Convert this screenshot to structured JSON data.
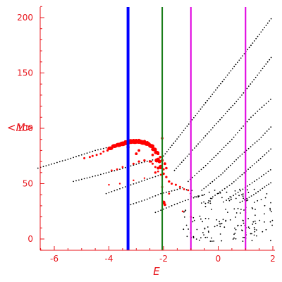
{
  "chart_data": {
    "type": "scatter",
    "title": "",
    "xlabel": "E",
    "ylabel": "<M>",
    "xlim": [
      -6.6,
      2.05
    ],
    "ylim": [
      -10,
      210
    ],
    "x_ticks": [
      -6,
      -4,
      -2,
      0,
      2
    ],
    "y_ticks": [
      0,
      50,
      100,
      150,
      200
    ],
    "axis_color": "#e8141b",
    "vertical_lines": [
      {
        "x": -3.3,
        "color": "#0000ff",
        "style": "thick"
      },
      {
        "x": -2.05,
        "color": "#1a7d1a",
        "style": "normal"
      },
      {
        "x": -1.0,
        "color": "#e000e0",
        "style": "normal"
      },
      {
        "x": 1.0,
        "color": "#e000e0",
        "style": "normal"
      }
    ],
    "series": [
      {
        "kind": "black-curves",
        "color": "#000000",
        "curves": [
          {
            "x": [
              -6.6,
              -5.5,
              -4.5,
              -4.0
            ],
            "y": [
              64,
              72,
              80,
              83
            ]
          },
          {
            "x": [
              -5.3,
              -4.5,
              -3.6,
              -2.8,
              -2.3
            ],
            "y": [
              52,
              57,
              63,
              69,
              72
            ]
          },
          {
            "x": [
              -4.1,
              -3.3,
              -2.6,
              -2.1
            ],
            "y": [
              41,
              48,
              54,
              58
            ]
          },
          {
            "x": [
              -3.2,
              -2.6,
              -2.1,
              -1.6,
              -1.2
            ],
            "y": [
              31,
              36,
              41,
              44,
              47
            ]
          },
          {
            "x": [
              -2.3,
              -1.8,
              -1.3,
              -0.8,
              -0.4
            ],
            "y": [
              24,
              29,
              34,
              38,
              41
            ]
          },
          {
            "x": [
              -2.0,
              -1.2,
              -0.4,
              0.4,
              1.2,
              2.0
            ],
            "y": [
              75,
              100,
              125,
              150,
              175,
              201
            ]
          },
          {
            "x": [
              -1.6,
              -0.8,
              0.0,
              0.8,
              1.5,
              2.0
            ],
            "y": [
              62,
              84,
              106,
              128,
              150,
              166
            ]
          },
          {
            "x": [
              -1.1,
              -0.3,
              0.5,
              1.2,
              2.0
            ],
            "y": [
              52,
              70,
              90,
              110,
              128
            ]
          },
          {
            "x": [
              -0.6,
              0.1,
              0.8,
              1.5,
              2.0
            ],
            "y": [
              44,
              58,
              75,
              90,
              103
            ]
          },
          {
            "x": [
              -0.2,
              0.5,
              1.1,
              1.7,
              2.0
            ],
            "y": [
              38,
              50,
              63,
              76,
              83
            ]
          },
          {
            "x": [
              0.3,
              0.9,
              1.5,
              2.0
            ],
            "y": [
              35,
              45,
              55,
              64
            ]
          },
          {
            "x": [
              0.8,
              1.3,
              1.7,
              2.0
            ],
            "y": [
              33,
              40,
              47,
              52
            ]
          }
        ],
        "scatter_region": {
          "x": [
            -1.3,
            2.0
          ],
          "y": [
            -2,
            45
          ],
          "count": 170
        }
      },
      {
        "kind": "red-points",
        "color": "#ff0000",
        "points": [
          {
            "x": -4.9,
            "y": 73,
            "s": 2
          },
          {
            "x": -4.7,
            "y": 74,
            "s": 2
          },
          {
            "x": -4.6,
            "y": 75,
            "s": 2
          },
          {
            "x": -4.45,
            "y": 76,
            "s": 2
          },
          {
            "x": -4.3,
            "y": 77,
            "s": 2
          },
          {
            "x": -4.2,
            "y": 79,
            "s": 2
          },
          {
            "x": -4.05,
            "y": 80,
            "s": 2.2
          },
          {
            "x": -3.9,
            "y": 82,
            "s": 2.2
          },
          {
            "x": -3.8,
            "y": 84,
            "s": 2.2
          },
          {
            "x": -3.7,
            "y": 85,
            "s": 2.4
          },
          {
            "x": -3.6,
            "y": 86,
            "s": 2.4
          },
          {
            "x": -3.5,
            "y": 87,
            "s": 2.4
          },
          {
            "x": -3.4,
            "y": 88,
            "s": 2.6
          },
          {
            "x": -3.3,
            "y": 89,
            "s": 2.6
          },
          {
            "x": -3.2,
            "y": 89,
            "s": 2.8
          },
          {
            "x": -3.1,
            "y": 89,
            "s": 3
          },
          {
            "x": -3.0,
            "y": 89,
            "s": 3
          },
          {
            "x": -2.9,
            "y": 89,
            "s": 3.2
          },
          {
            "x": -2.8,
            "y": 88,
            "s": 3.2
          },
          {
            "x": -2.7,
            "y": 88,
            "s": 3.2
          },
          {
            "x": -2.6,
            "y": 87,
            "s": 3.2
          },
          {
            "x": -2.5,
            "y": 85,
            "s": 3
          },
          {
            "x": -2.4,
            "y": 83,
            "s": 3
          },
          {
            "x": -2.3,
            "y": 80,
            "s": 2.8
          },
          {
            "x": -2.2,
            "y": 77,
            "s": 2.6
          },
          {
            "x": -2.12,
            "y": 74,
            "s": 2.4
          },
          {
            "x": -3.9,
            "y": 62,
            "s": 1.8
          },
          {
            "x": -3.7,
            "y": 63,
            "s": 1.8
          },
          {
            "x": -3.5,
            "y": 65,
            "s": 1.8
          },
          {
            "x": -3.3,
            "y": 67,
            "s": 2
          },
          {
            "x": -3.1,
            "y": 68,
            "s": 2
          },
          {
            "x": -2.9,
            "y": 70,
            "s": 2.2
          },
          {
            "x": -2.7,
            "y": 71,
            "s": 2.2
          },
          {
            "x": -2.5,
            "y": 70,
            "s": 2.2
          },
          {
            "x": -2.4,
            "y": 68,
            "s": 2
          },
          {
            "x": -2.3,
            "y": 65,
            "s": 2
          },
          {
            "x": -2.2,
            "y": 61,
            "s": 1.8
          },
          {
            "x": -2.1,
            "y": 58,
            "s": 1.8
          },
          {
            "x": -4.0,
            "y": 49,
            "s": 1.6
          },
          {
            "x": -3.6,
            "y": 50,
            "s": 1.6
          },
          {
            "x": -3.1,
            "y": 53,
            "s": 1.6
          },
          {
            "x": -2.7,
            "y": 55,
            "s": 1.6
          },
          {
            "x": -2.05,
            "y": 91,
            "s": 2.4
          },
          {
            "x": -3.3,
            "y": 83,
            "s": 3
          },
          {
            "x": -3.0,
            "y": 77,
            "s": 2.6
          },
          {
            "x": -2.9,
            "y": 80,
            "s": 2.6
          },
          {
            "x": -2.4,
            "y": 76,
            "s": 2.4
          },
          {
            "x": -2.2,
            "y": 72,
            "s": 3.2
          },
          {
            "x": -2.25,
            "y": 71,
            "s": 4
          },
          {
            "x": -2.15,
            "y": 70,
            "s": 3.4
          },
          {
            "x": -2.05,
            "y": 71,
            "s": 2.8
          },
          {
            "x": -1.95,
            "y": 68,
            "s": 2.6
          },
          {
            "x": -1.9,
            "y": 64,
            "s": 2.4
          },
          {
            "x": -2.2,
            "y": 64,
            "s": 2.6
          },
          {
            "x": -2.3,
            "y": 60,
            "s": 2.2
          },
          {
            "x": -2.0,
            "y": 63,
            "s": 2.2
          },
          {
            "x": -2.1,
            "y": 65,
            "s": 4.2
          },
          {
            "x": -2.0,
            "y": 59,
            "s": 2.4
          },
          {
            "x": -1.9,
            "y": 56,
            "s": 2.2
          },
          {
            "x": -1.8,
            "y": 52,
            "s": 2.2
          },
          {
            "x": -1.7,
            "y": 50,
            "s": 2
          },
          {
            "x": -1.55,
            "y": 49,
            "s": 2
          },
          {
            "x": -1.4,
            "y": 47,
            "s": 2
          },
          {
            "x": -1.25,
            "y": 45,
            "s": 1.8
          },
          {
            "x": -1.1,
            "y": 44,
            "s": 1.8
          },
          {
            "x": -2.0,
            "y": 33,
            "s": 3.6
          },
          {
            "x": -1.95,
            "y": 31,
            "s": 2.6
          },
          {
            "x": -2.05,
            "y": 47,
            "s": 2
          },
          {
            "x": -1.8,
            "y": 41,
            "s": 1.8
          },
          {
            "x": -1.3,
            "y": 25,
            "s": 1.8
          },
          {
            "x": -1.0,
            "y": 20,
            "s": 1.8
          },
          {
            "x": -2.45,
            "y": 70,
            "s": 2
          }
        ],
        "blobs": [
          {
            "x": -3.95,
            "y": 82,
            "s": 3
          },
          {
            "x": -3.8,
            "y": 84,
            "s": 3.2
          },
          {
            "x": -3.65,
            "y": 85,
            "s": 3.4
          },
          {
            "x": -3.5,
            "y": 86,
            "s": 3.6
          },
          {
            "x": -3.35,
            "y": 87,
            "s": 3.8
          },
          {
            "x": -3.2,
            "y": 88,
            "s": 3.8
          },
          {
            "x": -3.05,
            "y": 88,
            "s": 3.8
          },
          {
            "x": -2.9,
            "y": 88,
            "s": 3.6
          },
          {
            "x": -2.75,
            "y": 87,
            "s": 3.4
          },
          {
            "x": -2.6,
            "y": 86,
            "s": 3.4
          },
          {
            "x": -2.45,
            "y": 84,
            "s": 3.2
          },
          {
            "x": -2.35,
            "y": 81,
            "s": 3
          },
          {
            "x": -2.25,
            "y": 78,
            "s": 2.8
          }
        ]
      }
    ]
  }
}
